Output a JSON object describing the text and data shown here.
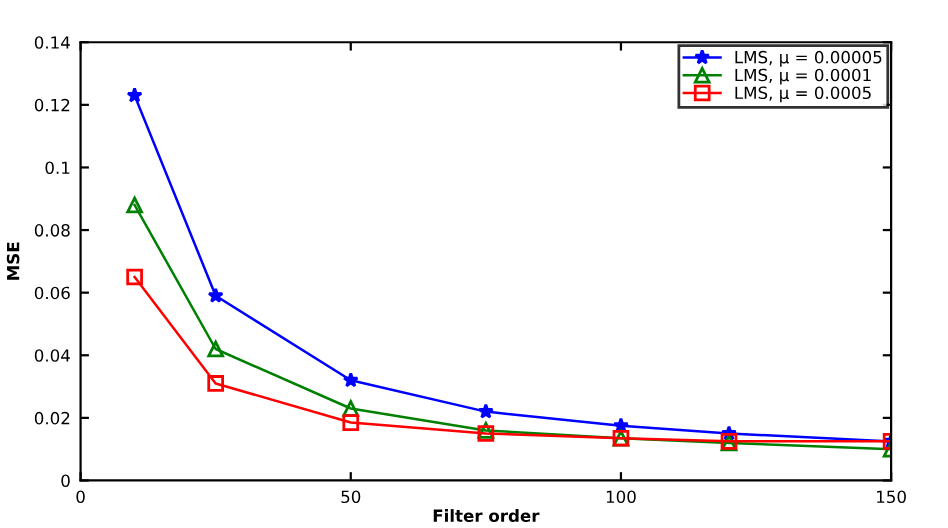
{
  "chart_data": {
    "type": "line",
    "xlabel": "Filter order",
    "ylabel": "MSE",
    "x": [
      10,
      25,
      50,
      75,
      100,
      120,
      150
    ],
    "series": [
      {
        "name": "LMS, μ = 0.00005",
        "color": "#0000ff",
        "marker": "star",
        "values": [
          0.123,
          0.059,
          0.032,
          0.022,
          0.0175,
          0.015,
          0.0125
        ]
      },
      {
        "name": "LMS, μ = 0.0001",
        "color": "#008000",
        "marker": "triangle",
        "values": [
          0.088,
          0.042,
          0.023,
          0.016,
          0.0135,
          0.012,
          0.01
        ]
      },
      {
        "name": "LMS, μ = 0.0005",
        "color": "#ff0000",
        "marker": "square",
        "values": [
          0.065,
          0.031,
          0.0185,
          0.015,
          0.0135,
          0.0125,
          0.0125
        ]
      }
    ],
    "xlim": [
      0,
      150
    ],
    "xticks": [
      0,
      50,
      100,
      150
    ],
    "ylim": [
      0,
      0.14
    ],
    "yticks": [
      0,
      0.02,
      0.04,
      0.06,
      0.08,
      0.1,
      0.12,
      0.14
    ],
    "grid": false,
    "legend": "top right",
    "line_style": "solid"
  }
}
